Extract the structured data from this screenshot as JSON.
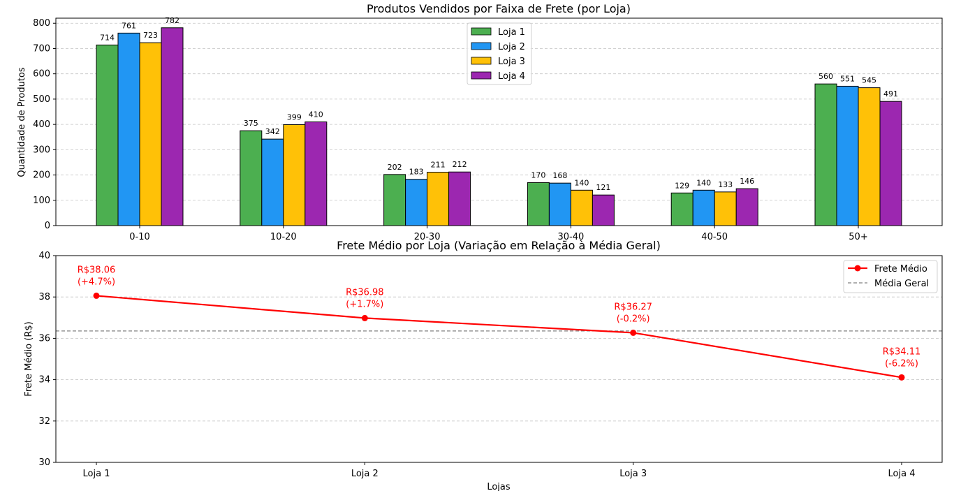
{
  "chart_data": [
    {
      "type": "bar",
      "title": "Produtos Vendidos por Faixa de Frete (por Loja)",
      "xlabel": "",
      "ylabel": "Quantidade de Produtos",
      "ylim": [
        0,
        820
      ],
      "yticks": [
        0,
        100,
        200,
        300,
        400,
        500,
        600,
        700,
        800
      ],
      "categories": [
        "0-10",
        "10-20",
        "20-30",
        "30-40",
        "40-50",
        "50+"
      ],
      "grid": "y-dashed",
      "legend_position": "top-center",
      "series": [
        {
          "name": "Loja 1",
          "color": "#4caf50",
          "values": [
            714,
            375,
            202,
            170,
            129,
            560
          ]
        },
        {
          "name": "Loja 2",
          "color": "#2196f3",
          "values": [
            761,
            342,
            183,
            168,
            140,
            551
          ]
        },
        {
          "name": "Loja 3",
          "color": "#ffc107",
          "values": [
            723,
            399,
            211,
            140,
            133,
            545
          ]
        },
        {
          "name": "Loja 4",
          "color": "#9c27b0",
          "values": [
            782,
            410,
            212,
            121,
            146,
            491
          ]
        }
      ]
    },
    {
      "type": "line",
      "title": "Frete Médio por Loja (Variação em Relação à Média Geral)",
      "xlabel": "Lojas",
      "ylabel": "Frete Médio (R$)",
      "ylim": [
        30,
        40
      ],
      "yticks": [
        30,
        32,
        34,
        36,
        38,
        40
      ],
      "categories": [
        "Loja 1",
        "Loja 2",
        "Loja 3",
        "Loja 4"
      ],
      "grid": "y-dashed",
      "legend_position": "top-right",
      "series": [
        {
          "name": "Frete Médio",
          "color": "#ff0000",
          "values": [
            38.06,
            36.98,
            36.27,
            34.11
          ],
          "annotations": [
            [
              "R$38.06",
              "(+4.7%)"
            ],
            [
              "R$36.98",
              "(+1.7%)"
            ],
            [
              "R$36.27",
              "(-0.2%)"
            ],
            [
              "R$34.11",
              "(-6.2%)"
            ]
          ]
        }
      ],
      "reference_line": {
        "name": "Média Geral",
        "value": 36.355,
        "color": "#808080"
      }
    }
  ]
}
